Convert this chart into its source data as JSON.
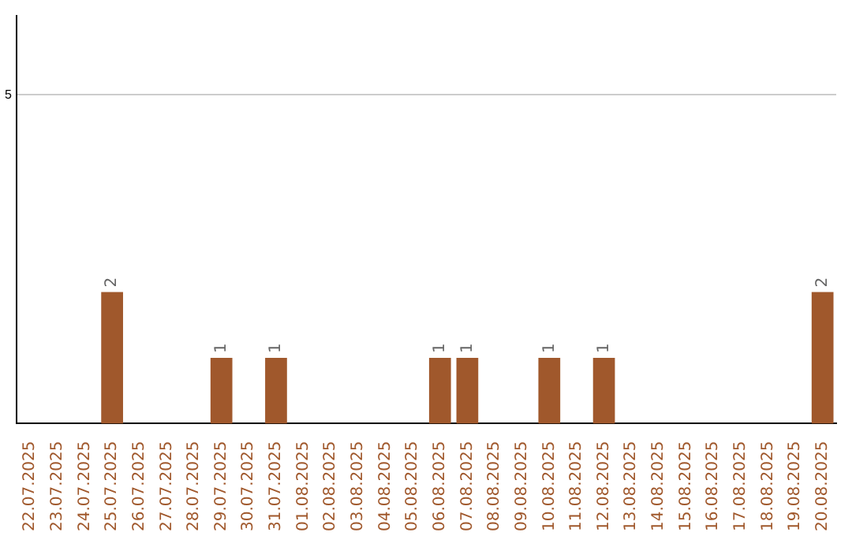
{
  "chart_data": {
    "type": "bar",
    "categories": [
      "22.07.2025",
      "23.07.2025",
      "24.07.2025",
      "25.07.2025",
      "26.07.2025",
      "27.07.2025",
      "28.07.2025",
      "29.07.2025",
      "30.07.2025",
      "31.07.2025",
      "01.08.2025",
      "02.08.2025",
      "03.08.2025",
      "04.08.2025",
      "05.08.2025",
      "06.08.2025",
      "07.08.2025",
      "08.08.2025",
      "09.08.2025",
      "10.08.2025",
      "11.08.2025",
      "12.08.2025",
      "13.08.2025",
      "14.08.2025",
      "15.08.2025",
      "16.08.2025",
      "17.08.2025",
      "18.08.2025",
      "19.08.2025",
      "20.08.2025"
    ],
    "values": [
      0,
      0,
      0,
      2,
      0,
      0,
      0,
      1,
      0,
      1,
      0,
      0,
      0,
      0,
      0,
      1,
      1,
      0,
      0,
      1,
      0,
      1,
      0,
      0,
      0,
      0,
      0,
      0,
      0,
      2
    ],
    "value_labels": [
      null,
      null,
      null,
      "2",
      null,
      null,
      null,
      "1",
      null,
      "1",
      null,
      null,
      null,
      null,
      null,
      "1",
      "1",
      null,
      null,
      "1",
      null,
      "1",
      null,
      null,
      null,
      null,
      null,
      null,
      null,
      "2"
    ],
    "color": "#a0582c",
    "ylim": [
      0,
      6.2
    ],
    "yticks": [
      5
    ],
    "grid": "y",
    "legend": false
  }
}
